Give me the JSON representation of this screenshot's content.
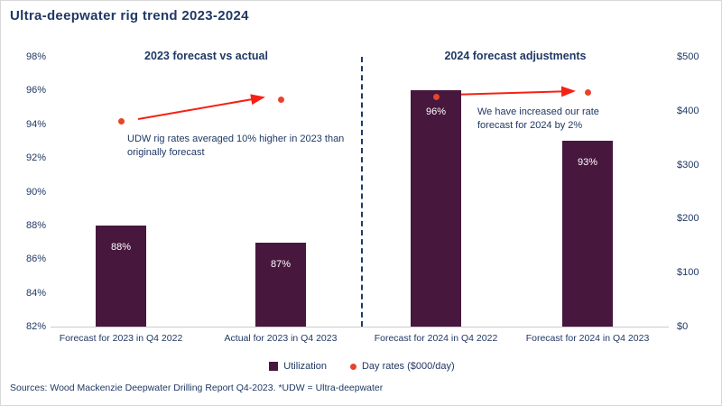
{
  "title": "Ultra-deepwater rig trend 2023-2024",
  "sections": {
    "left": "2023 forecast vs actual",
    "right": "2024 forecast adjustments"
  },
  "annotations": {
    "left": "UDW rig rates averaged 10% higher in 2023 than originally forecast",
    "right": "We have increased our rate forecast for 2024 by 2%"
  },
  "legend": [
    {
      "label": "Utilization",
      "marker": "square"
    },
    {
      "label": "Day rates ($000/day)",
      "marker": "dot"
    }
  ],
  "source": "Sources: Wood Mackenzie Deepwater Drilling Report Q4-2023. *UDW = Ultra-deepwater",
  "colors": {
    "bar": "#47173d",
    "dot": "#e8432d",
    "arrow": "#f52114",
    "text": "#203864"
  },
  "chart_data": {
    "type": "bar",
    "title": "Ultra-deepwater rig trend 2023-2024",
    "categories": [
      "Forecast for 2023 in Q4 2022",
      "Actual for 2023 in Q4 2023",
      "Forecast for 2024 in Q4 2022",
      "Forecast for 2024 in Q4 2023"
    ],
    "series": [
      {
        "name": "Utilization",
        "type": "bar",
        "axis": "left",
        "values": [
          88,
          87,
          96,
          93
        ],
        "labels": [
          "88%",
          "87%",
          "96%",
          "93%"
        ]
      },
      {
        "name": "Day rates ($000/day)",
        "type": "scatter",
        "axis": "right",
        "values": [
          380,
          420,
          425,
          434
        ]
      }
    ],
    "left_axis": {
      "min": 82,
      "max": 98,
      "unit": "%",
      "ticks": [
        "98%",
        "96%",
        "94%",
        "92%",
        "90%",
        "88%",
        "86%",
        "84%",
        "82%"
      ]
    },
    "right_axis": {
      "min": 0,
      "max": 500,
      "unit": "$",
      "ticks": [
        "$500",
        "$400",
        "$300",
        "$200",
        "$100",
        "$0"
      ]
    },
    "grid": false,
    "legend_position": "bottom"
  }
}
